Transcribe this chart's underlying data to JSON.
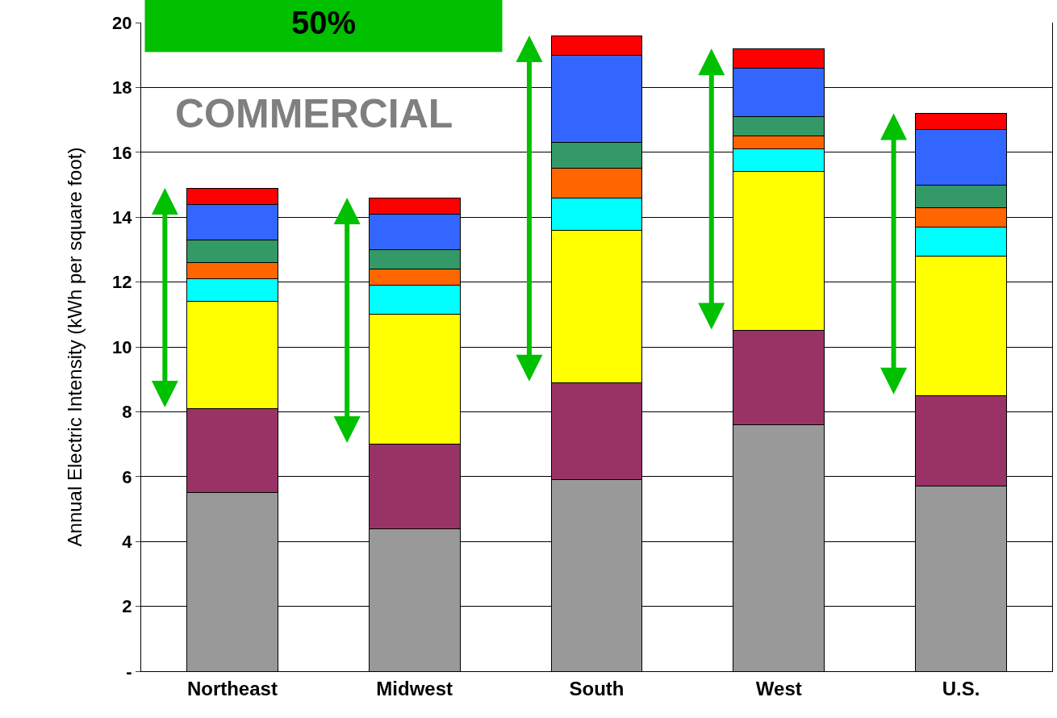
{
  "chart_data": {
    "type": "bar",
    "stacked": true,
    "ylabel": "Annual Electric Intensity (kWh per square foot)",
    "annotations": [
      "50%",
      "COMMERCIAL"
    ],
    "categories": [
      "Northeast",
      "Midwest",
      "South",
      "West",
      "U.S."
    ],
    "series": [
      {
        "color": "#999999",
        "values": [
          5.5,
          4.4,
          5.9,
          7.6,
          5.7
        ]
      },
      {
        "color": "#993366",
        "values": [
          2.6,
          2.6,
          3.0,
          2.9,
          2.8
        ]
      },
      {
        "color": "#ffff00",
        "values": [
          3.3,
          4.0,
          4.7,
          4.9,
          4.3
        ]
      },
      {
        "color": "#00ffff",
        "values": [
          0.7,
          0.9,
          1.0,
          0.7,
          0.9
        ]
      },
      {
        "color": "#ff6600",
        "values": [
          0.5,
          0.5,
          0.9,
          0.4,
          0.6
        ]
      },
      {
        "color": "#339966",
        "values": [
          0.7,
          0.6,
          0.8,
          0.6,
          0.7
        ]
      },
      {
        "color": "#3366ff",
        "values": [
          1.1,
          1.1,
          2.7,
          1.5,
          1.7
        ]
      },
      {
        "color": "#ff0000",
        "values": [
          0.5,
          0.5,
          0.6,
          0.6,
          0.5
        ]
      }
    ],
    "ylim": [
      0,
      20
    ],
    "yticks": [
      {
        "value": 0,
        "label": "-"
      },
      2,
      4,
      6,
      8,
      10,
      12,
      14,
      16,
      18,
      20
    ],
    "grid": "y"
  }
}
